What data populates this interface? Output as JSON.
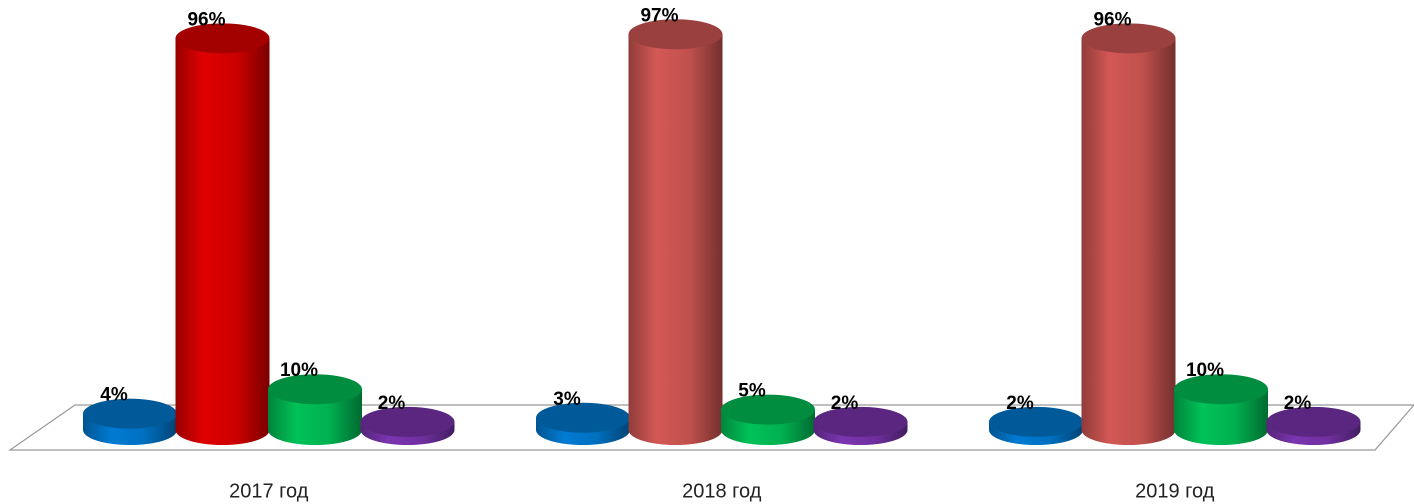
{
  "chart_data": {
    "type": "cylinder",
    "categories": [
      "2017 год",
      "2018 год",
      "2019 год"
    ],
    "ylim": [
      0,
      100
    ],
    "series": [
      {
        "color": "#0070c0",
        "values": [
          4,
          3,
          2
        ],
        "value_labels": [
          "4%",
          "3%",
          "2%"
        ]
      },
      {
        "color": "#c0504d",
        "colors": [
          "#cc0000",
          "#c0504d",
          "#c0504d"
        ],
        "values": [
          96,
          97,
          96
        ],
        "value_labels": [
          "96%",
          "97%",
          "96%"
        ]
      },
      {
        "color": "#00b050",
        "values": [
          10,
          5,
          10
        ],
        "value_labels": [
          "10%",
          "5%",
          "10%"
        ]
      },
      {
        "color": "#7030a0",
        "values": [
          2,
          2,
          2
        ],
        "value_labels": [
          "2%",
          "2%",
          "2%"
        ]
      }
    ]
  }
}
